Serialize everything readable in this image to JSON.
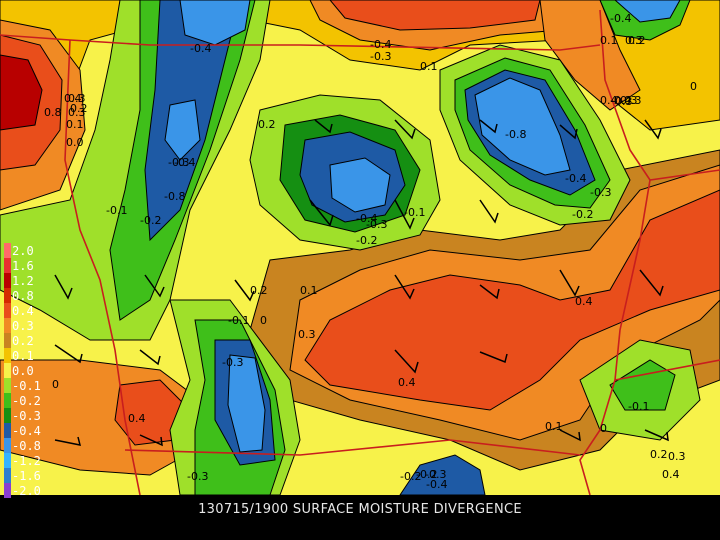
{
  "title": "130715/1900 SURFACE MOISTURE DIVERGENCE",
  "legend": {
    "entries": [
      {
        "label": "2.0",
        "color": "#ff6a6a"
      },
      {
        "label": "1.6",
        "color": "#e83030"
      },
      {
        "label": "1.2",
        "color": "#b80000"
      },
      {
        "label": "0.8",
        "color": "#d42a00"
      },
      {
        "label": "0.4",
        "color": "#e94e1b"
      },
      {
        "label": "0.3",
        "color": "#f08a24"
      },
      {
        "label": "0.2",
        "color": "#c98420"
      },
      {
        "label": "0.1",
        "color": "#f3c300"
      },
      {
        "label": "0.0",
        "color": "#f7f24a"
      },
      {
        "label": "-0.1",
        "color": "#9fe02a"
      },
      {
        "label": "-0.2",
        "color": "#3fbf1a"
      },
      {
        "label": "-0.3",
        "color": "#158f12"
      },
      {
        "label": "-0.4",
        "color": "#1e5aa5"
      },
      {
        "label": "-0.8",
        "color": "#3a95e8"
      },
      {
        "label": "-1.2",
        "color": "#33b4ff"
      },
      {
        "label": "-1.6",
        "color": "#2e7fd0"
      },
      {
        "label": "-2.0",
        "color": "#8a3fd0"
      }
    ]
  },
  "contour_labels": [
    "-0.4",
    "-0.4",
    "-0.3",
    "0.1",
    "-0.4",
    "0.3",
    "0.1",
    "0.2",
    "0.3",
    "0.4",
    "0.3",
    "0.8",
    "0.3",
    "0.4",
    "0.3",
    "0.2",
    "0.1",
    "0.0",
    "-0.1",
    "-0.2",
    "-0.3",
    "-0.4",
    "-0.8",
    "0.2",
    "-0.4",
    "-0.3",
    "-0.8",
    "-0.4",
    "-0.3",
    "-0.2",
    "-0.4",
    "-0.3",
    "-0.2",
    "-0.1",
    "0.2",
    "0.1",
    "-0.1",
    "0",
    "0.3",
    "-0.3",
    "0.4",
    "0.4",
    "0",
    "0.4",
    "-0.1",
    "0.1",
    "0",
    "0.2",
    "0.3",
    "0.4",
    "-0.3",
    "-0.2",
    "-0.3",
    "-0.4",
    "-0.2",
    "0"
  ]
}
